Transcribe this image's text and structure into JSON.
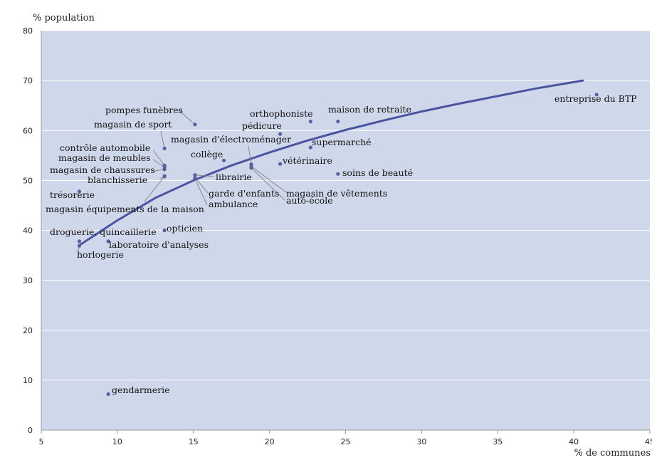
{
  "chart_data": {
    "type": "scatter",
    "title": "",
    "xlabel": "% de communes",
    "ylabel": "% population",
    "xlim": [
      5,
      45
    ],
    "ylim": [
      0,
      80
    ],
    "xticks": [
      5,
      10,
      15,
      20,
      25,
      30,
      35,
      40,
      45
    ],
    "yticks": [
      0,
      10,
      20,
      30,
      40,
      50,
      60,
      70,
      80
    ],
    "grid": true,
    "colors": {
      "plot_background": "#cfd8ea",
      "gridline": "#ffffff",
      "point": "#5b5fa0",
      "trendline": "#4a55a2",
      "leader": "#8a8a8a"
    },
    "points": [
      {
        "label": "entreprise du BTP",
        "x": 41.5,
        "y": 67.2
      },
      {
        "label": "maison de retraite",
        "x": 24.5,
        "y": 61.8
      },
      {
        "label": "orthophoniste",
        "x": 22.7,
        "y": 61.8
      },
      {
        "label": "pédicure",
        "x": 20.7,
        "y": 59.3
      },
      {
        "label": "supermarché",
        "x": 22.7,
        "y": 56.6
      },
      {
        "label": "vétérinaire",
        "x": 20.7,
        "y": 53.3
      },
      {
        "label": "soins de beauté",
        "x": 24.5,
        "y": 51.3
      },
      {
        "label": "pompes funèbres",
        "x": 15.1,
        "y": 61.2
      },
      {
        "label": "magasin de sport",
        "x": 13.1,
        "y": 56.4
      },
      {
        "label": "magasin d'électroménager",
        "x": 18.8,
        "y": 53.2
      },
      {
        "label": "collège",
        "x": 17.0,
        "y": 54.0
      },
      {
        "label": "contrôle automobile",
        "x": 13.1,
        "y": 53.0
      },
      {
        "label": "magasin de meubles",
        "x": 13.1,
        "y": 52.6
      },
      {
        "label": "magasin de chaussures",
        "x": 13.1,
        "y": 52.2
      },
      {
        "label": "blanchisserie",
        "x": 13.1,
        "y": 50.9
      },
      {
        "label": "magasin équipements de la maison",
        "x": 13.1,
        "y": 50.8
      },
      {
        "label": "librairie",
        "x": 15.1,
        "y": 51.1
      },
      {
        "label": "garde d'enfants",
        "x": 15.1,
        "y": 50.6
      },
      {
        "label": "ambulance",
        "x": 15.1,
        "y": 50.3
      },
      {
        "label": "magasin de vêtements",
        "x": 18.8,
        "y": 52.8
      },
      {
        "label": "auto-école",
        "x": 18.8,
        "y": 52.5
      },
      {
        "label": "trésorerie",
        "x": 7.5,
        "y": 47.8
      },
      {
        "label": "opticien",
        "x": 13.1,
        "y": 40.0
      },
      {
        "label": "droguerie, quincaillerie",
        "x": 7.5,
        "y": 37.8
      },
      {
        "label": "laboratoire d'analyses",
        "x": 9.4,
        "y": 37.8
      },
      {
        "label": "horlogerie",
        "x": 7.5,
        "y": 36.9
      },
      {
        "label": "gendarmerie",
        "x": 9.4,
        "y": 7.2
      }
    ],
    "trendline": {
      "type": "logarithmic",
      "x": [
        7.5,
        10,
        12.5,
        15,
        17.5,
        20,
        22.5,
        25,
        27.5,
        30,
        32.5,
        35,
        37.5,
        40.6
      ],
      "y": [
        37.0,
        42.0,
        46.5,
        50.0,
        53.0,
        55.6,
        58.0,
        60.1,
        62.0,
        63.8,
        65.4,
        66.9,
        68.4,
        70.0
      ]
    }
  }
}
